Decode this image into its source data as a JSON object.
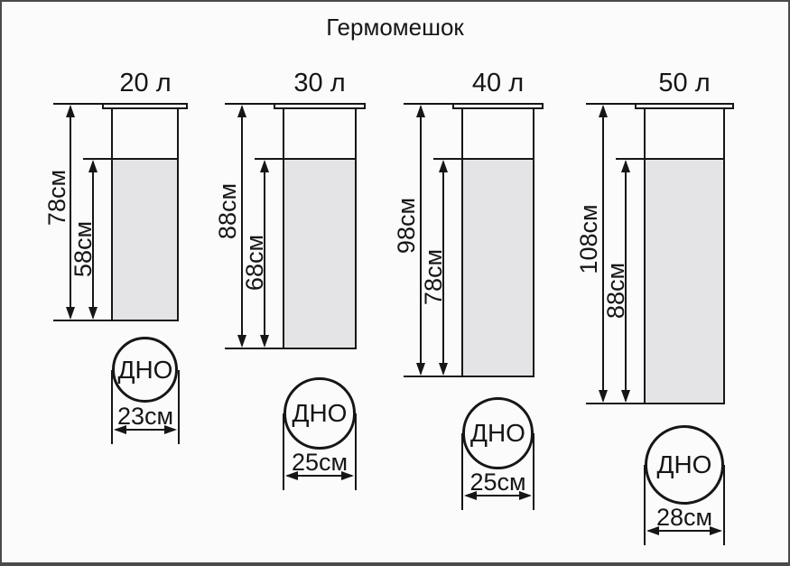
{
  "title": "Гермомешок",
  "bottom_label": "ДНО",
  "units": {
    "length": "см",
    "volume": "л"
  },
  "bags": [
    {
      "volume": "20 л",
      "total_height": "78см",
      "body_height": "58см",
      "bottom_diameter": "23см",
      "total_cm": 78,
      "body_cm": 58,
      "diameter_cm": 23
    },
    {
      "volume": "30 л",
      "total_height": "88см",
      "body_height": "68см",
      "bottom_diameter": "25см",
      "total_cm": 88,
      "body_cm": 68,
      "diameter_cm": 25
    },
    {
      "volume": "40 л",
      "total_height": "98см",
      "body_height": "78см",
      "bottom_diameter": "25см",
      "total_cm": 98,
      "body_cm": 78,
      "diameter_cm": 25
    },
    {
      "volume": "50 л",
      "total_height": "108см",
      "body_height": "88см",
      "bottom_diameter": "28см",
      "total_cm": 108,
      "body_cm": 88,
      "diameter_cm": 28
    }
  ],
  "colors": {
    "line": "#161616",
    "fill": "#e4e4e6",
    "background": "#fbfbfb",
    "frame": "#4a4a4a"
  }
}
